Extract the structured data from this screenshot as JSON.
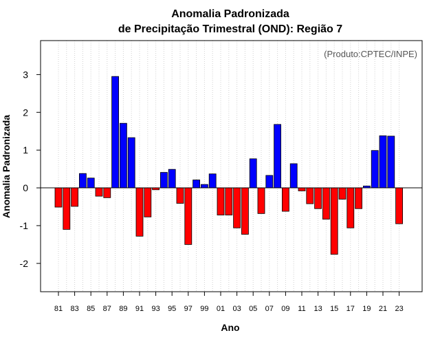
{
  "chart_data": {
    "type": "bar",
    "title_line1": "Anomalia Padronizada",
    "title_line2": "de Precipitação Trimestral (OND): Região 7",
    "xlabel": "Ano",
    "ylabel": "Anomalia Padronizada",
    "annotation": "(Produto:CPTEC/INPE)",
    "ylim": [
      -2.75,
      3.9
    ],
    "yticks": [
      -2,
      -1,
      0,
      1,
      2,
      3
    ],
    "xtick_labels": [
      "81",
      "83",
      "85",
      "87",
      "89",
      "91",
      "93",
      "95",
      "97",
      "99",
      "01",
      "03",
      "05",
      "07",
      "09",
      "11",
      "13",
      "15",
      "17",
      "19",
      "21",
      "23"
    ],
    "grid": true,
    "positive_color": "#0000ff",
    "negative_color": "#ff0000",
    "categories": [
      "1981",
      "1982",
      "1983",
      "1984",
      "1985",
      "1986",
      "1987",
      "1988",
      "1989",
      "1990",
      "1991",
      "1992",
      "1993",
      "1994",
      "1995",
      "1996",
      "1997",
      "1998",
      "1999",
      "2000",
      "2001",
      "2002",
      "2003",
      "2004",
      "2005",
      "2006",
      "2007",
      "2008",
      "2009",
      "2010",
      "2011",
      "2012",
      "2013",
      "2014",
      "2015",
      "2016",
      "2017",
      "2018",
      "2019",
      "2020",
      "2021",
      "2022",
      "2023"
    ],
    "values": [
      -0.51,
      -1.1,
      -0.49,
      0.38,
      0.26,
      -0.22,
      -0.26,
      2.95,
      1.71,
      1.33,
      -1.28,
      -0.77,
      -0.05,
      0.41,
      0.49,
      -0.41,
      -1.5,
      0.21,
      0.09,
      0.37,
      -0.72,
      -0.72,
      -1.06,
      -1.23,
      0.77,
      -0.68,
      0.33,
      1.68,
      -0.62,
      0.64,
      -0.08,
      -0.42,
      -0.55,
      -0.83,
      -1.76,
      -0.3,
      -1.06,
      -0.55,
      0.05,
      0.99,
      1.38,
      1.37,
      -0.95
    ]
  }
}
